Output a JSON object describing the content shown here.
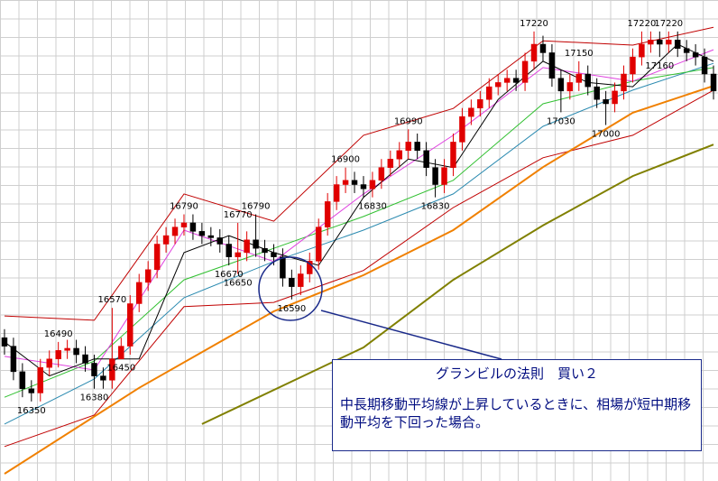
{
  "chart_data": {
    "type": "candlestick",
    "ylim": [
      16163,
      17294
    ],
    "open": [
      16500,
      16480,
      16420,
      16380,
      16370,
      16430,
      16450,
      16470,
      16475,
      16460,
      16440,
      16410,
      16400,
      16450,
      16480,
      16580,
      16630,
      16660,
      16720,
      16740,
      16760,
      16770,
      16750,
      16740,
      16735,
      16720,
      16690,
      16700,
      16730,
      16710,
      16700,
      16690,
      16640,
      16620,
      16650,
      16680,
      16760,
      16820,
      16860,
      16870,
      16860,
      16850,
      16870,
      16900,
      16920,
      16940,
      16960,
      16940,
      16900,
      16860,
      16900,
      16960,
      17020,
      17040,
      17060,
      17090,
      17100,
      17110,
      17100,
      17150,
      17190,
      17170,
      17110,
      17080,
      17100,
      17120,
      17090,
      17060,
      17050,
      17080,
      17120,
      17160,
      17190,
      17200,
      17190,
      17200,
      17180,
      17170,
      17160,
      17120
    ],
    "high": [
      16520,
      16500,
      16440,
      16400,
      16450,
      16470,
      16490,
      16495,
      16495,
      16480,
      16460,
      16430,
      16570,
      16500,
      16600,
      16650,
      16680,
      16740,
      16760,
      16780,
      16790,
      16790,
      16770,
      16760,
      16755,
      16740,
      16770,
      16750,
      16790,
      16730,
      16720,
      16710,
      16660,
      16670,
      16700,
      16780,
      16840,
      16880,
      16900,
      16890,
      16880,
      16890,
      16920,
      16940,
      16960,
      16990,
      16980,
      16960,
      16920,
      16920,
      16980,
      17040,
      17060,
      17080,
      17110,
      17120,
      17130,
      17130,
      17170,
      17220,
      17210,
      17190,
      17130,
      17120,
      17150,
      17140,
      17110,
      17080,
      17100,
      17140,
      17180,
      17220,
      17220,
      17220,
      17220,
      17220,
      17200,
      17190,
      17180,
      17140
    ],
    "low": [
      16460,
      16400,
      16360,
      16350,
      16350,
      16410,
      16430,
      16450,
      16440,
      16420,
      16380,
      16380,
      16380,
      16450,
      16460,
      16560,
      16610,
      16640,
      16700,
      16720,
      16740,
      16730,
      16720,
      16715,
      16700,
      16670,
      16650,
      16680,
      16690,
      16680,
      16670,
      16620,
      16590,
      16600,
      16630,
      16660,
      16740,
      16800,
      16840,
      16840,
      16830,
      16830,
      16850,
      16880,
      16900,
      16920,
      16920,
      16880,
      16830,
      16840,
      16880,
      16940,
      17000,
      17020,
      17040,
      17070,
      17080,
      17080,
      17080,
      17130,
      17150,
      17090,
      17030,
      17060,
      17080,
      17070,
      17040,
      17000,
      17030,
      17060,
      17100,
      17140,
      17170,
      17160,
      17170,
      17160,
      17150,
      17140,
      17100,
      17060
    ],
    "close": [
      16480,
      16420,
      16380,
      16370,
      16430,
      16450,
      16470,
      16475,
      16460,
      16440,
      16410,
      16400,
      16450,
      16480,
      16580,
      16630,
      16660,
      16720,
      16740,
      16760,
      16770,
      16750,
      16740,
      16735,
      16720,
      16690,
      16700,
      16730,
      16710,
      16700,
      16690,
      16640,
      16620,
      16650,
      16680,
      16760,
      16820,
      16860,
      16870,
      16860,
      16850,
      16870,
      16900,
      16920,
      16940,
      16960,
      16940,
      16900,
      16860,
      16900,
      16960,
      17020,
      17040,
      17060,
      17090,
      17100,
      17110,
      17100,
      17150,
      17190,
      17170,
      17110,
      17080,
      17100,
      17120,
      17090,
      17060,
      17050,
      17080,
      17120,
      17160,
      17190,
      17200,
      17190,
      17200,
      17180,
      17170,
      17160,
      17120,
      17080
    ],
    "up_color": "#e00000",
    "down_color": "#000000",
    "lines": [
      {
        "color": "#c00000",
        "x": [
          0,
          10,
          20,
          30,
          40,
          50,
          60,
          70,
          79
        ],
        "values": [
          16551,
          16541,
          16838,
          16774,
          16976,
          17039,
          17198,
          17188,
          17230
        ]
      },
      {
        "color": "#c00000",
        "x": [
          0,
          10,
          20,
          30,
          40,
          50,
          60,
          70,
          79
        ],
        "values": [
          16244,
          16318,
          16573,
          16583,
          16658,
          16806,
          16923,
          16976,
          17082
        ]
      },
      {
        "color": "#808000",
        "x": [
          22,
          40,
          50,
          60,
          70,
          79
        ],
        "values": [
          16297,
          16477,
          16636,
          16764,
          16880,
          16954
        ]
      },
      {
        "color": "#f08000",
        "x": [
          0,
          15,
          30,
          40,
          50,
          60,
          70,
          79
        ],
        "values": [
          16180,
          16382,
          16562,
          16647,
          16753,
          16901,
          17029,
          17092
        ]
      },
      {
        "color": "#2a8ab0",
        "x": [
          0,
          10,
          20,
          30,
          40,
          50,
          60,
          70,
          79
        ],
        "values": [
          16297,
          16403,
          16594,
          16679,
          16753,
          16838,
          16997,
          17082,
          17145
        ]
      },
      {
        "color": "#30c030",
        "x": [
          0,
          10,
          20,
          30,
          40,
          50,
          60,
          70,
          79
        ],
        "values": [
          16360,
          16445,
          16636,
          16710,
          16785,
          16870,
          17050,
          17103,
          17135
        ]
      },
      {
        "color": "#e040e0",
        "x": [
          0,
          10,
          20,
          30,
          40,
          50,
          60,
          70,
          79
        ],
        "values": [
          16456,
          16424,
          16753,
          16679,
          16838,
          16976,
          17135,
          17103,
          17177
        ]
      },
      {
        "color": "#000000",
        "x": [
          0,
          5,
          10,
          15,
          20,
          25,
          30,
          35,
          40,
          45,
          50,
          55,
          60,
          65,
          70,
          75,
          79
        ],
        "values": [
          16490,
          16410,
          16450,
          16450,
          16700,
          16740,
          16700,
          16670,
          16830,
          16920,
          16900,
          17060,
          17150,
          17100,
          17090,
          17190,
          17150
        ]
      }
    ],
    "annotations": [
      {
        "value": 16350,
        "x": 3
      },
      {
        "value": 16380,
        "x": 10
      },
      {
        "value": 16450,
        "x": 13
      },
      {
        "value": 16490,
        "x": 6
      },
      {
        "value": 16570,
        "x": 12
      },
      {
        "value": 16590,
        "x": 32
      },
      {
        "value": 16650,
        "x": 26
      },
      {
        "value": 16670,
        "x": 25
      },
      {
        "value": 16770,
        "x": 26
      },
      {
        "value": 16790,
        "x": 20
      },
      {
        "value": 16790,
        "x": 28
      },
      {
        "value": 16830,
        "x": 41
      },
      {
        "value": 16830,
        "x": 48
      },
      {
        "value": 16900,
        "x": 38
      },
      {
        "value": 16990,
        "x": 45
      },
      {
        "value": 17000,
        "x": 67
      },
      {
        "value": 17030,
        "x": 62
      },
      {
        "value": 17150,
        "x": 64
      },
      {
        "value": 17160,
        "x": 73
      },
      {
        "value": 17220,
        "x": 59
      },
      {
        "value": 17220,
        "x": 71
      },
      {
        "value": 17220,
        "x": 74
      }
    ],
    "note": {
      "title": "グランビルの法則　買い２",
      "body": "中長期移動平均線が上昇しているときに、相場が短中期移動平均を下回った場合。"
    }
  }
}
